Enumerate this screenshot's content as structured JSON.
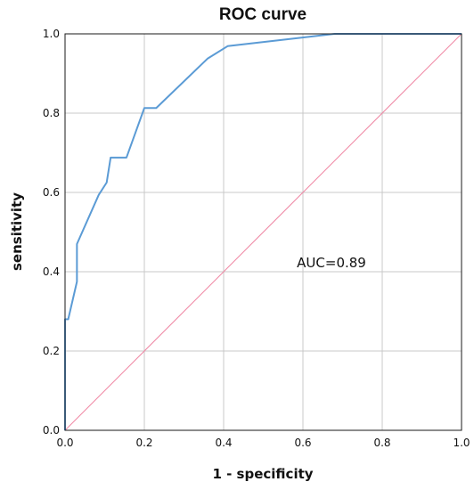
{
  "chart_data": {
    "type": "line",
    "title": "ROC curve",
    "xlabel": "1 - specificity",
    "ylabel": "sensitivity",
    "xlim": [
      0,
      1
    ],
    "ylim": [
      0,
      1
    ],
    "x_ticks": [
      "0.0",
      "0.2",
      "0.4",
      "0.6",
      "0.8",
      "1.0"
    ],
    "y_ticks": [
      "0.0",
      "0.2",
      "0.4",
      "0.6",
      "0.8",
      "1.0"
    ],
    "grid": true,
    "annotation": "AUC=0.89",
    "series": [
      {
        "color": "#5b9bd5",
        "x": [
          0.0,
          0.0,
          0.008,
          0.03,
          0.03,
          0.085,
          0.105,
          0.115,
          0.155,
          0.2,
          0.23,
          0.36,
          0.41,
          0.68,
          1.0
        ],
        "y": [
          0.0,
          0.28,
          0.28,
          0.375,
          0.47,
          0.594,
          0.625,
          0.688,
          0.688,
          0.813,
          0.813,
          0.938,
          0.969,
          1.0,
          1.0
        ]
      },
      {
        "color": "#f08aa6",
        "x": [
          0,
          1
        ],
        "y": [
          0,
          1
        ]
      }
    ]
  }
}
